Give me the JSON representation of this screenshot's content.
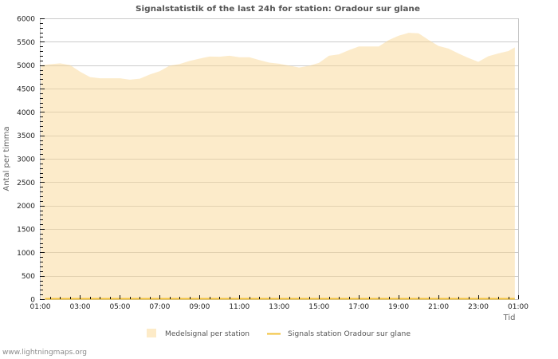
{
  "chart_data": {
    "type": "area",
    "title": "Signalstatistik of the last 24h for station: Oradour sur glane",
    "xlabel": "Tid",
    "ylabel": "Antal per timma",
    "ylim": [
      0,
      6000
    ],
    "y_ticks": [
      0,
      500,
      1000,
      1500,
      2000,
      2500,
      3000,
      3500,
      4000,
      4500,
      5000,
      5500,
      6000
    ],
    "y_minor_step": 100,
    "x_tick_labels": [
      "01:00",
      "03:00",
      "05:00",
      "07:00",
      "09:00",
      "11:00",
      "13:00",
      "15:00",
      "17:00",
      "19:00",
      "21:00",
      "23:00",
      "01:00"
    ],
    "x_tick_step_hours": 2,
    "x_minor_step_hours": 0.5,
    "x_span_hours": 24,
    "grid": true,
    "legend_position": "bottom",
    "x": [
      "01:00",
      "01:30",
      "02:00",
      "02:30",
      "03:00",
      "03:30",
      "04:00",
      "04:30",
      "05:00",
      "05:30",
      "06:00",
      "06:30",
      "07:00",
      "07:30",
      "08:00",
      "08:30",
      "09:00",
      "09:30",
      "10:00",
      "10:30",
      "11:00",
      "11:30",
      "12:00",
      "12:30",
      "13:00",
      "13:30",
      "14:00",
      "14:30",
      "15:00",
      "15:30",
      "16:00",
      "16:30",
      "17:00",
      "17:30",
      "18:00",
      "18:30",
      "19:00",
      "19:30",
      "20:00",
      "20:30",
      "21:00",
      "21:30",
      "22:00",
      "22:30",
      "23:00",
      "23:30",
      "00:00",
      "00:30",
      "00:50"
    ],
    "series": [
      {
        "name": "Medelsignal per station",
        "type": "area",
        "color": "#fdebc8",
        "values": [
          5000,
          5020,
          5040,
          5000,
          4860,
          4745,
          4720,
          4720,
          4720,
          4690,
          4710,
          4800,
          4870,
          4990,
          5025,
          5090,
          5140,
          5185,
          5180,
          5200,
          5170,
          5170,
          5110,
          5055,
          5030,
          4990,
          4950,
          4985,
          5050,
          5200,
          5230,
          5320,
          5400,
          5400,
          5400,
          5535,
          5630,
          5690,
          5680,
          5540,
          5410,
          5355,
          5250,
          5155,
          5070,
          5190,
          5250,
          5300,
          5380
        ]
      },
      {
        "name": "Signals station Oradour sur glane",
        "type": "line",
        "color": "#f2c23c",
        "values": [
          0,
          0,
          0,
          0,
          0,
          0,
          0,
          0,
          0,
          0,
          0,
          0,
          0,
          0,
          0,
          0,
          0,
          0,
          0,
          0,
          0,
          0,
          0,
          0,
          0,
          0,
          0,
          0,
          0,
          0,
          0,
          0,
          0,
          0,
          0,
          0,
          0,
          0,
          0,
          0,
          0,
          0,
          0,
          0,
          0,
          0,
          0,
          0,
          0
        ]
      }
    ]
  },
  "legend": {
    "items": [
      {
        "label": "Medelsignal per station",
        "kind": "area-swatch"
      },
      {
        "label": "Signals station Oradour sur glane",
        "kind": "line-swatch"
      }
    ]
  },
  "footer": {
    "source": "www.lightningmaps.org"
  }
}
